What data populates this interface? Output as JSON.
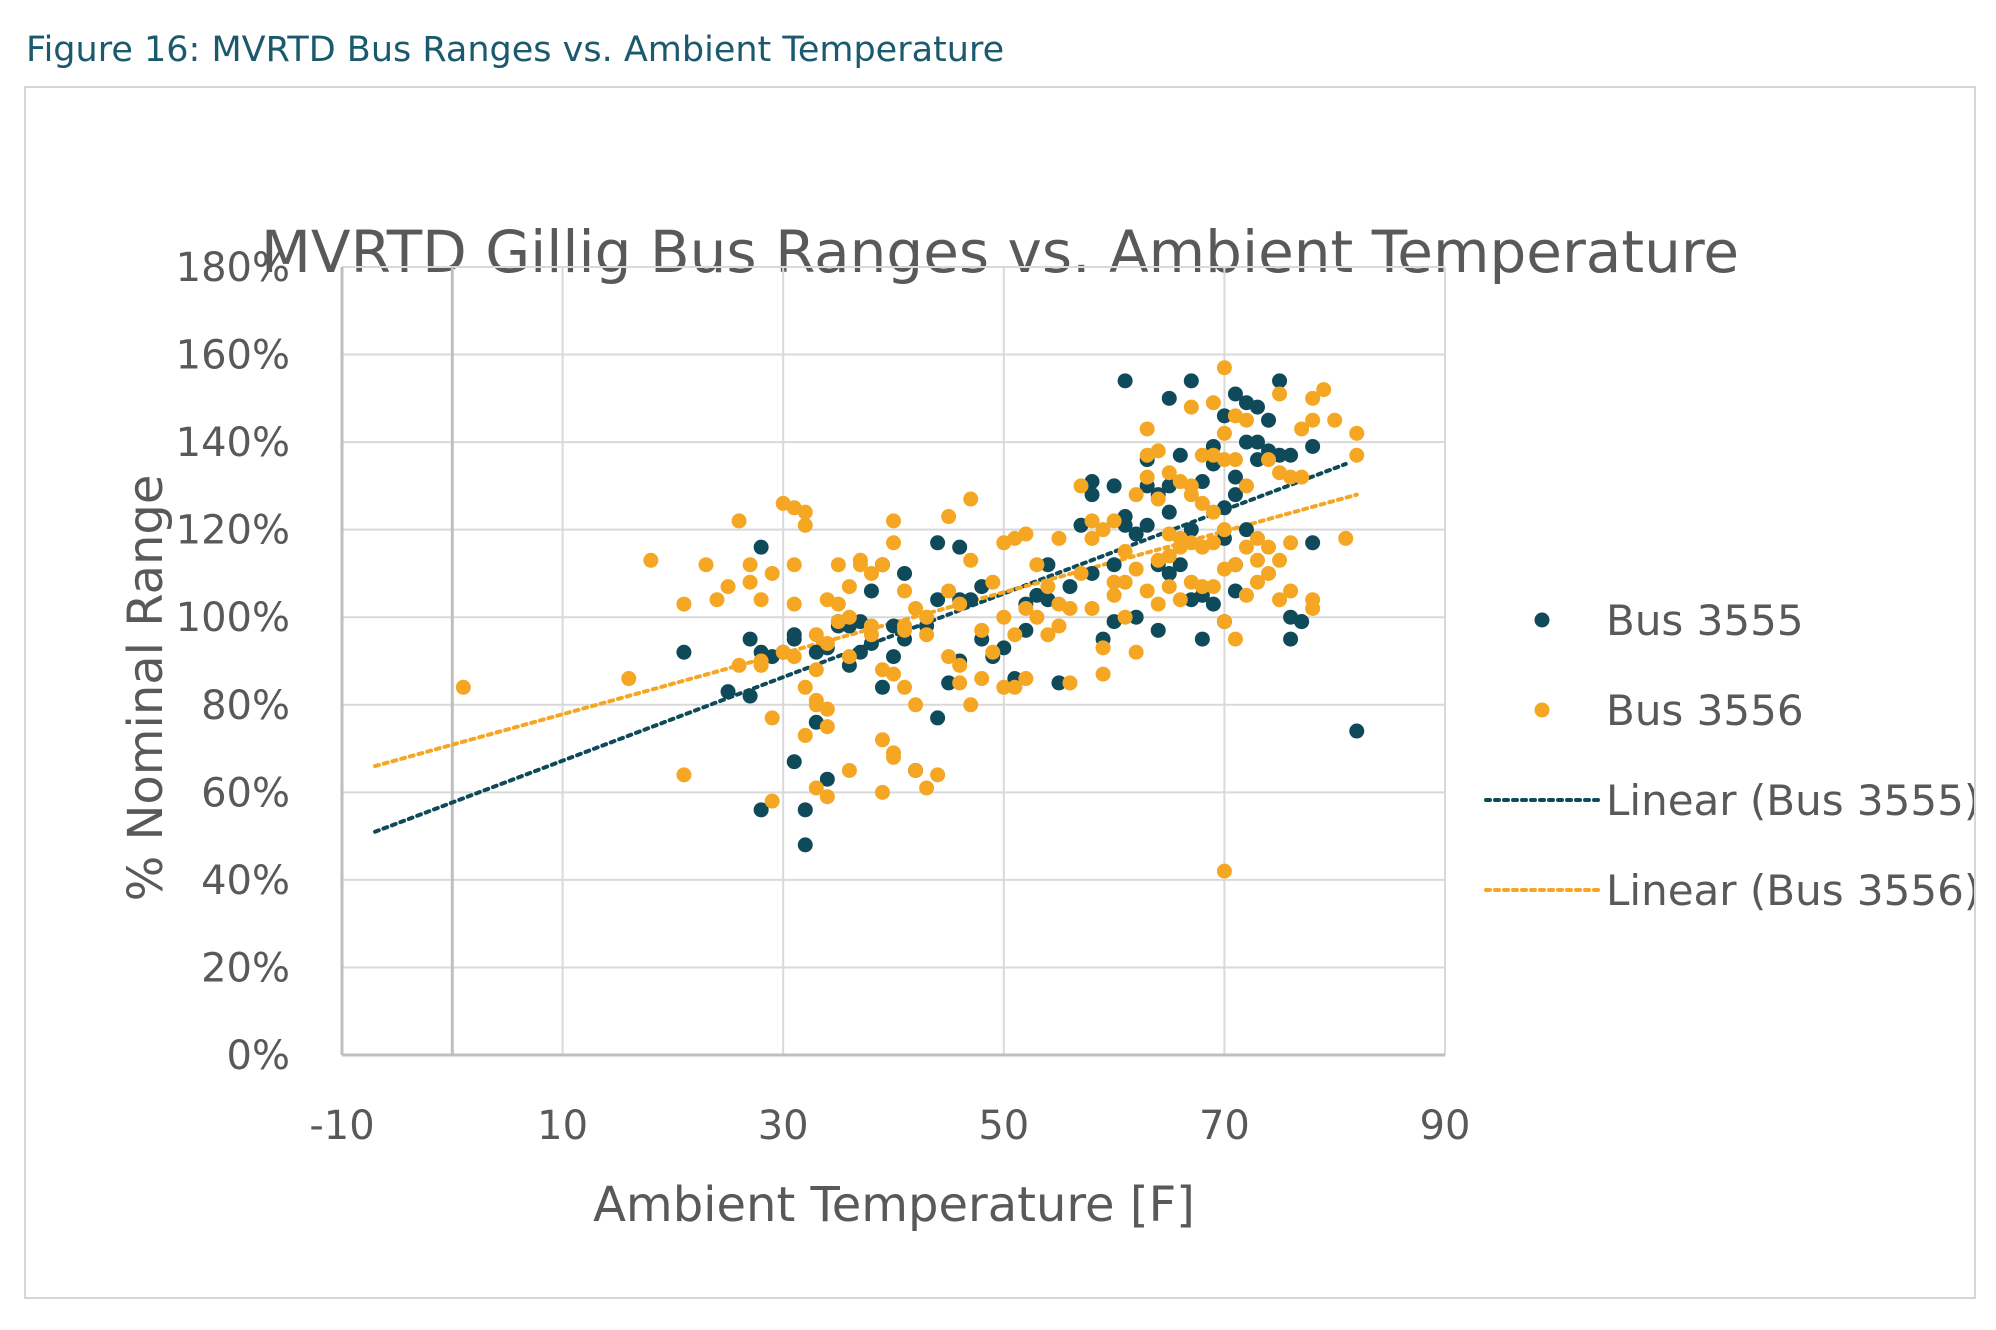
{
  "caption": "Figure 16: MVRTD Bus Ranges vs. Ambient Temperature",
  "chart_data": {
    "type": "scatter",
    "title": "MVRTD Gillig Bus Ranges vs. Ambient Temperature",
    "xlabel": "Ambient Temperature [F]",
    "ylabel": "% Nominal Range",
    "xlim": [
      -10,
      90
    ],
    "ylim": [
      0,
      180
    ],
    "x_ticks": [
      -10,
      10,
      30,
      50,
      70,
      90
    ],
    "x_tick_labels": [
      "-10",
      "10",
      "30",
      "50",
      "70",
      "90"
    ],
    "y_ticks": [
      0,
      20,
      40,
      60,
      80,
      100,
      120,
      140,
      160,
      180
    ],
    "y_tick_labels": [
      "0%",
      "20%",
      "40%",
      "60%",
      "80%",
      "100%",
      "120%",
      "140%",
      "160%",
      "180%"
    ],
    "grid": true,
    "legend_position": "right",
    "series": [
      {
        "name": "Bus 3555",
        "color": "#0e4a5a",
        "points": [
          [
            21,
            92
          ],
          [
            25,
            83
          ],
          [
            27,
            95
          ],
          [
            27,
            82
          ],
          [
            28,
            116
          ],
          [
            28,
            56
          ],
          [
            28,
            92
          ],
          [
            29,
            91
          ],
          [
            30,
            92
          ],
          [
            31,
            95
          ],
          [
            31,
            67
          ],
          [
            31,
            96
          ],
          [
            32,
            56
          ],
          [
            32,
            48
          ],
          [
            33,
            76
          ],
          [
            33,
            92
          ],
          [
            34,
            63
          ],
          [
            34,
            93
          ],
          [
            35,
            99
          ],
          [
            35,
            98
          ],
          [
            36,
            98
          ],
          [
            36,
            89
          ],
          [
            37,
            99
          ],
          [
            37,
            92
          ],
          [
            38,
            106
          ],
          [
            38,
            94
          ],
          [
            39,
            112
          ],
          [
            39,
            84
          ],
          [
            40,
            91
          ],
          [
            40,
            98
          ],
          [
            41,
            110
          ],
          [
            41,
            95
          ],
          [
            42,
            65
          ],
          [
            43,
            98
          ],
          [
            44,
            104
          ],
          [
            44,
            117
          ],
          [
            44,
            77
          ],
          [
            45,
            85
          ],
          [
            46,
            90
          ],
          [
            46,
            116
          ],
          [
            46,
            104
          ],
          [
            47,
            104
          ],
          [
            48,
            107
          ],
          [
            48,
            95
          ],
          [
            49,
            91
          ],
          [
            50,
            93
          ],
          [
            51,
            86
          ],
          [
            52,
            97
          ],
          [
            52,
            103
          ],
          [
            53,
            105
          ],
          [
            54,
            112
          ],
          [
            54,
            104
          ],
          [
            55,
            85
          ],
          [
            56,
            107
          ],
          [
            57,
            121
          ],
          [
            58,
            131
          ],
          [
            58,
            128
          ],
          [
            58,
            110
          ],
          [
            59,
            95
          ],
          [
            60,
            130
          ],
          [
            60,
            99
          ],
          [
            60,
            112
          ],
          [
            61,
            121
          ],
          [
            61,
            154
          ],
          [
            61,
            123
          ],
          [
            62,
            100
          ],
          [
            62,
            119
          ],
          [
            63,
            130
          ],
          [
            63,
            136
          ],
          [
            63,
            121
          ],
          [
            64,
            128
          ],
          [
            64,
            112
          ],
          [
            64,
            97
          ],
          [
            65,
            130
          ],
          [
            65,
            150
          ],
          [
            65,
            110
          ],
          [
            65,
            124
          ],
          [
            66,
            137
          ],
          [
            66,
            112
          ],
          [
            67,
            104
          ],
          [
            67,
            120
          ],
          [
            67,
            154
          ],
          [
            68,
            95
          ],
          [
            68,
            131
          ],
          [
            68,
            105
          ],
          [
            69,
            135
          ],
          [
            69,
            103
          ],
          [
            69,
            139
          ],
          [
            70,
            125
          ],
          [
            70,
            99
          ],
          [
            70,
            118
          ],
          [
            70,
            146
          ],
          [
            71,
            128
          ],
          [
            71,
            132
          ],
          [
            71,
            112
          ],
          [
            71,
            151
          ],
          [
            71,
            106
          ],
          [
            72,
            149
          ],
          [
            72,
            140
          ],
          [
            72,
            120
          ],
          [
            73,
            140
          ],
          [
            73,
            148
          ],
          [
            73,
            136
          ],
          [
            74,
            145
          ],
          [
            74,
            138
          ],
          [
            74,
            137
          ],
          [
            75,
            154
          ],
          [
            75,
            137
          ],
          [
            76,
            137
          ],
          [
            76,
            100
          ],
          [
            76,
            95
          ],
          [
            77,
            99
          ],
          [
            77,
            99
          ],
          [
            78,
            117
          ],
          [
            78,
            139
          ],
          [
            82,
            74
          ]
        ],
        "trend": {
          "name": "Linear (Bus 3555)",
          "x": [
            -7,
            81
          ],
          "y": [
            51,
            135
          ]
        }
      },
      {
        "name": "Bus 3556",
        "color": "#f5a623",
        "points": [
          [
            1,
            84
          ],
          [
            16,
            86
          ],
          [
            18,
            113
          ],
          [
            21,
            64
          ],
          [
            21,
            103
          ],
          [
            23,
            112
          ],
          [
            24,
            104
          ],
          [
            25,
            107
          ],
          [
            26,
            122
          ],
          [
            26,
            89
          ],
          [
            27,
            112
          ],
          [
            27,
            108
          ],
          [
            28,
            104
          ],
          [
            28,
            89
          ],
          [
            28,
            90
          ],
          [
            29,
            77
          ],
          [
            29,
            58
          ],
          [
            29,
            110
          ],
          [
            30,
            126
          ],
          [
            30,
            92
          ],
          [
            31,
            125
          ],
          [
            31,
            112
          ],
          [
            31,
            103
          ],
          [
            31,
            91
          ],
          [
            32,
            124
          ],
          [
            32,
            121
          ],
          [
            32,
            73
          ],
          [
            32,
            84
          ],
          [
            33,
            96
          ],
          [
            33,
            88
          ],
          [
            33,
            81
          ],
          [
            33,
            80
          ],
          [
            33,
            61
          ],
          [
            34,
            79
          ],
          [
            34,
            75
          ],
          [
            34,
            59
          ],
          [
            34,
            104
          ],
          [
            34,
            94
          ],
          [
            35,
            103
          ],
          [
            35,
            99
          ],
          [
            35,
            112
          ],
          [
            36,
            100
          ],
          [
            36,
            107
          ],
          [
            36,
            91
          ],
          [
            36,
            65
          ],
          [
            37,
            113
          ],
          [
            37,
            112
          ],
          [
            38,
            98
          ],
          [
            38,
            110
          ],
          [
            38,
            96
          ],
          [
            39,
            60
          ],
          [
            39,
            88
          ],
          [
            39,
            112
          ],
          [
            39,
            72
          ],
          [
            40,
            69
          ],
          [
            40,
            68
          ],
          [
            40,
            122
          ],
          [
            40,
            117
          ],
          [
            40,
            87
          ],
          [
            41,
            106
          ],
          [
            41,
            97
          ],
          [
            41,
            84
          ],
          [
            41,
            98
          ],
          [
            42,
            80
          ],
          [
            42,
            65
          ],
          [
            42,
            102
          ],
          [
            43,
            61
          ],
          [
            43,
            96
          ],
          [
            43,
            100
          ],
          [
            44,
            64
          ],
          [
            45,
            91
          ],
          [
            45,
            106
          ],
          [
            45,
            123
          ],
          [
            46,
            85
          ],
          [
            46,
            103
          ],
          [
            46,
            89
          ],
          [
            47,
            127
          ],
          [
            47,
            80
          ],
          [
            47,
            113
          ],
          [
            48,
            97
          ],
          [
            48,
            86
          ],
          [
            49,
            108
          ],
          [
            49,
            92
          ],
          [
            50,
            100
          ],
          [
            50,
            84
          ],
          [
            50,
            117
          ],
          [
            51,
            84
          ],
          [
            51,
            96
          ],
          [
            51,
            118
          ],
          [
            52,
            119
          ],
          [
            52,
            102
          ],
          [
            52,
            86
          ],
          [
            53,
            112
          ],
          [
            53,
            100
          ],
          [
            54,
            96
          ],
          [
            54,
            107
          ],
          [
            55,
            103
          ],
          [
            55,
            98
          ],
          [
            55,
            118
          ],
          [
            56,
            85
          ],
          [
            56,
            102
          ],
          [
            57,
            110
          ],
          [
            57,
            130
          ],
          [
            58,
            118
          ],
          [
            58,
            122
          ],
          [
            58,
            102
          ],
          [
            59,
            120
          ],
          [
            59,
            87
          ],
          [
            59,
            93
          ],
          [
            60,
            108
          ],
          [
            60,
            105
          ],
          [
            60,
            122
          ],
          [
            61,
            108
          ],
          [
            61,
            100
          ],
          [
            61,
            115
          ],
          [
            62,
            111
          ],
          [
            62,
            128
          ],
          [
            62,
            92
          ],
          [
            63,
            132
          ],
          [
            63,
            143
          ],
          [
            63,
            137
          ],
          [
            63,
            106
          ],
          [
            64,
            127
          ],
          [
            64,
            138
          ],
          [
            64,
            113
          ],
          [
            64,
            103
          ],
          [
            65,
            107
          ],
          [
            65,
            133
          ],
          [
            65,
            119
          ],
          [
            65,
            114
          ],
          [
            66,
            116
          ],
          [
            66,
            131
          ],
          [
            66,
            118
          ],
          [
            66,
            104
          ],
          [
            67,
            130
          ],
          [
            67,
            128
          ],
          [
            67,
            117
          ],
          [
            67,
            108
          ],
          [
            67,
            148
          ],
          [
            68,
            137
          ],
          [
            68,
            126
          ],
          [
            68,
            116
          ],
          [
            68,
            107
          ],
          [
            69,
            149
          ],
          [
            69,
            137
          ],
          [
            69,
            124
          ],
          [
            69,
            117
          ],
          [
            69,
            107
          ],
          [
            70,
            157
          ],
          [
            70,
            142
          ],
          [
            70,
            136
          ],
          [
            70,
            120
          ],
          [
            70,
            111
          ],
          [
            70,
            99
          ],
          [
            70,
            42
          ],
          [
            71,
            146
          ],
          [
            71,
            136
          ],
          [
            71,
            112
          ],
          [
            71,
            95
          ],
          [
            72,
            145
          ],
          [
            72,
            130
          ],
          [
            72,
            116
          ],
          [
            72,
            105
          ],
          [
            73,
            118
          ],
          [
            73,
            113
          ],
          [
            73,
            108
          ],
          [
            74,
            136
          ],
          [
            74,
            116
          ],
          [
            74,
            110
          ],
          [
            75,
            151
          ],
          [
            75,
            133
          ],
          [
            75,
            113
          ],
          [
            75,
            104
          ],
          [
            76,
            132
          ],
          [
            76,
            117
          ],
          [
            76,
            106
          ],
          [
            77,
            143
          ],
          [
            77,
            132
          ],
          [
            78,
            150
          ],
          [
            78,
            145
          ],
          [
            78,
            104
          ],
          [
            78,
            102
          ],
          [
            79,
            152
          ],
          [
            80,
            145
          ],
          [
            81,
            118
          ],
          [
            82,
            142
          ],
          [
            82,
            137
          ]
        ],
        "trend": {
          "name": "Linear (Bus 3556)",
          "x": [
            -7,
            82
          ],
          "y": [
            66,
            128
          ]
        }
      }
    ]
  }
}
